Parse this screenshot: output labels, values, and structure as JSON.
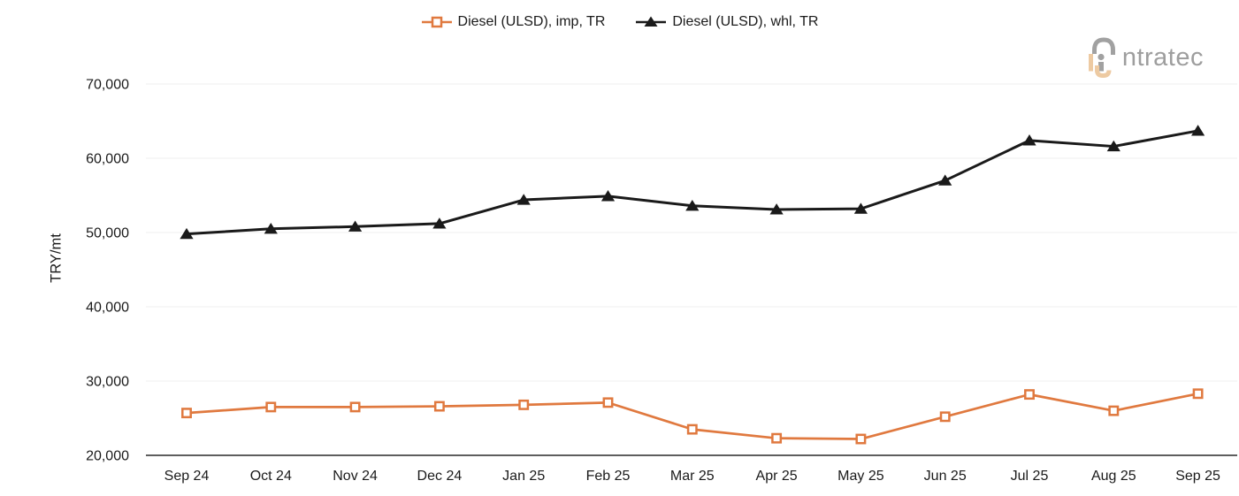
{
  "logo": {
    "brand": "intratec",
    "text": "ntratec"
  },
  "legend": {
    "items": [
      {
        "label": "Diesel (ULSD), imp, TR",
        "marker": "open-square"
      },
      {
        "label": "Diesel (ULSD), whl, TR",
        "marker": "filled-triangle"
      }
    ],
    "position": "top-center"
  },
  "chart_data": {
    "type": "line",
    "title": "",
    "xlabel": "",
    "ylabel": "TRY/mt",
    "x": [
      "Sep 24",
      "Oct 24",
      "Nov 24",
      "Dec 24",
      "Jan 25",
      "Feb 25",
      "Mar 25",
      "Apr 25",
      "May 25",
      "Jun 25",
      "Jul 25",
      "Aug 25",
      "Sep 25"
    ],
    "series": [
      {
        "name": "Diesel (ULSD), imp, TR",
        "color": "#e0793f",
        "marker": "open-square",
        "values": [
          25700,
          26500,
          26500,
          26600,
          26800,
          27100,
          23500,
          22300,
          22200,
          25200,
          28200,
          26000,
          28300
        ]
      },
      {
        "name": "Diesel (ULSD), whl, TR",
        "color": "#1a1a1a",
        "marker": "filled-triangle",
        "values": [
          49800,
          50500,
          50800,
          51200,
          54400,
          54900,
          53600,
          53100,
          53200,
          57000,
          62400,
          61600,
          63700
        ]
      }
    ],
    "ylim": [
      20000,
      70000
    ],
    "y_ticks": [
      20000,
      30000,
      40000,
      50000,
      60000,
      70000
    ],
    "y_tick_labels": [
      "20,000",
      "30,000",
      "40,000",
      "50,000",
      "60,000",
      "70,000"
    ],
    "grid": "horizontal-light",
    "legend_position": "top-center"
  }
}
